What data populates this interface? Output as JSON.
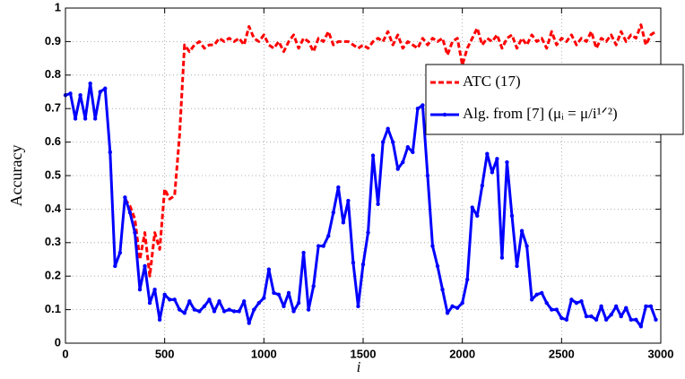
{
  "chart_data": {
    "type": "line",
    "xlabel": "i",
    "ylabel": "Accuracy",
    "x": [
      0,
      25,
      50,
      75,
      100,
      125,
      150,
      175,
      200,
      225,
      250,
      275,
      300,
      325,
      350,
      375,
      400,
      425,
      450,
      475,
      500,
      525,
      550,
      575,
      600,
      625,
      650,
      675,
      700,
      725,
      750,
      775,
      800,
      825,
      850,
      875,
      900,
      925,
      950,
      975,
      1000,
      1025,
      1050,
      1075,
      1100,
      1125,
      1150,
      1175,
      1200,
      1225,
      1250,
      1275,
      1300,
      1325,
      1350,
      1375,
      1400,
      1425,
      1450,
      1475,
      1500,
      1525,
      1550,
      1575,
      1600,
      1625,
      1650,
      1675,
      1700,
      1725,
      1750,
      1775,
      1800,
      1825,
      1850,
      1875,
      1900,
      1925,
      1950,
      1975,
      2000,
      2025,
      2050,
      2075,
      2100,
      2125,
      2150,
      2175,
      2200,
      2225,
      2250,
      2275,
      2300,
      2325,
      2350,
      2375,
      2400,
      2425,
      2450,
      2475,
      2500,
      2525,
      2550,
      2575,
      2600,
      2625,
      2650,
      2675,
      2700,
      2725,
      2750,
      2775,
      2800,
      2825,
      2850,
      2875,
      2900,
      2925,
      2950,
      2975
    ],
    "series": [
      {
        "name": "ATC (17)",
        "color": "#ff0000",
        "dashed": true,
        "markers": false,
        "values": [
          null,
          null,
          null,
          null,
          null,
          null,
          null,
          null,
          null,
          null,
          null,
          null,
          0.43,
          0.41,
          0.37,
          0.25,
          0.33,
          0.2,
          0.33,
          0.28,
          0.46,
          0.43,
          0.44,
          0.62,
          0.89,
          0.87,
          0.89,
          0.9,
          0.88,
          0.89,
          0.89,
          0.91,
          0.9,
          0.91,
          0.9,
          0.91,
          0.89,
          0.945,
          0.91,
          0.9,
          0.92,
          0.89,
          0.88,
          0.9,
          0.87,
          0.9,
          0.92,
          0.88,
          0.91,
          0.9,
          0.87,
          0.91,
          0.9,
          0.93,
          0.89,
          0.9,
          0.9,
          0.9,
          0.89,
          0.88,
          0.89,
          0.88,
          0.9,
          0.91,
          0.9,
          0.93,
          0.89,
          0.92,
          0.88,
          0.9,
          0.89,
          0.88,
          0.91,
          0.89,
          0.91,
          0.9,
          0.91,
          0.86,
          0.9,
          0.91,
          0.83,
          0.88,
          0.91,
          0.94,
          0.89,
          0.91,
          0.9,
          0.92,
          0.88,
          0.91,
          0.92,
          0.88,
          0.91,
          0.89,
          0.92,
          0.9,
          0.91,
          0.88,
          0.93,
          0.89,
          0.91,
          0.9,
          0.92,
          0.89,
          0.91,
          0.9,
          0.93,
          0.88,
          0.91,
          0.9,
          0.92,
          0.89,
          0.93,
          0.9,
          0.92,
          0.91,
          0.95,
          0.89,
          0.92,
          0.93
        ]
      },
      {
        "name": "Alg. from [7] (μᵢ = μ/i¹ᐟ²)",
        "color": "#0000ff",
        "dashed": false,
        "markers": true,
        "values": [
          0.74,
          0.745,
          0.67,
          0.74,
          0.67,
          0.775,
          0.67,
          0.75,
          0.76,
          0.57,
          0.23,
          0.27,
          0.435,
          0.39,
          0.33,
          0.16,
          0.23,
          0.12,
          0.16,
          0.07,
          0.145,
          0.13,
          0.13,
          0.1,
          0.09,
          0.125,
          0.1,
          0.095,
          0.11,
          0.13,
          0.095,
          0.125,
          0.095,
          0.1,
          0.095,
          0.095,
          0.125,
          0.06,
          0.1,
          0.12,
          0.135,
          0.22,
          0.15,
          0.145,
          0.11,
          0.15,
          0.095,
          0.12,
          0.27,
          0.1,
          0.17,
          0.29,
          0.29,
          0.32,
          0.39,
          0.465,
          0.36,
          0.425,
          0.24,
          0.11,
          0.235,
          0.33,
          0.56,
          0.415,
          0.6,
          0.64,
          0.6,
          0.52,
          0.54,
          0.585,
          0.57,
          0.7,
          0.71,
          0.5,
          0.29,
          0.23,
          0.16,
          0.09,
          0.11,
          0.105,
          0.12,
          0.19,
          0.405,
          0.38,
          0.47,
          0.565,
          0.51,
          0.55,
          0.255,
          0.54,
          0.38,
          0.23,
          0.335,
          0.29,
          0.13,
          0.145,
          0.15,
          0.12,
          0.1,
          0.1,
          0.075,
          0.07,
          0.13,
          0.12,
          0.125,
          0.08,
          0.08,
          0.07,
          0.11,
          0.07,
          0.085,
          0.11,
          0.08,
          0.105,
          0.07,
          0.07,
          0.05,
          0.11,
          0.11,
          0.07
        ]
      }
    ],
    "xlim": [
      0,
      3000
    ],
    "xticks": [
      0,
      500,
      1000,
      1500,
      2000,
      2500,
      3000
    ],
    "ylim": [
      0,
      1
    ],
    "yticks": [
      0,
      0.1,
      0.2,
      0.3,
      0.4,
      0.5,
      0.6,
      0.7,
      0.8,
      0.9,
      1
    ],
    "grid": true,
    "legend": "upper right"
  }
}
